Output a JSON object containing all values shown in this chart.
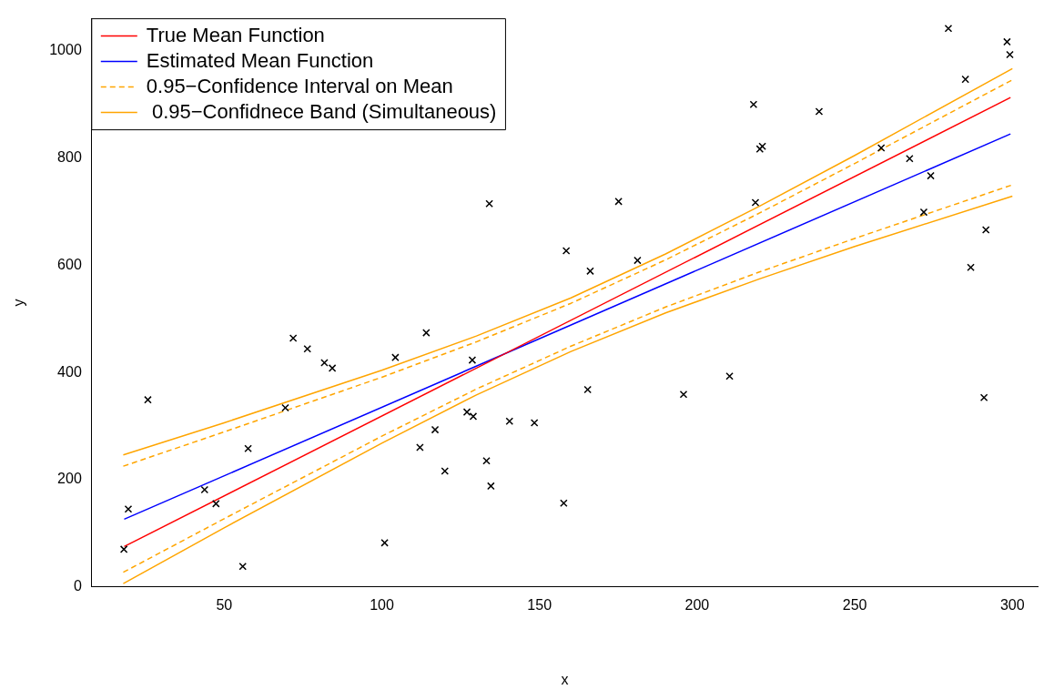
{
  "chart_data": {
    "type": "scatter",
    "xlabel": "x",
    "ylabel": "y",
    "xlim": [
      8,
      308
    ],
    "ylim": [
      0,
      1060
    ],
    "xticks": [
      50,
      100,
      150,
      200,
      250,
      300
    ],
    "yticks": [
      0,
      200,
      400,
      600,
      800,
      1000
    ],
    "grid": false,
    "legend": "top left",
    "x": [
      18.2,
      19.6,
      25.8,
      43.8,
      47.4,
      55.9,
      57.6,
      69.4,
      71.9,
      76.4,
      81.8,
      84.3,
      100.9,
      104.3,
      112.1,
      114.1,
      116.9,
      120.0,
      127.0,
      128.7,
      129.0,
      133.2,
      134.1,
      134.6,
      140.5,
      148.4,
      157.7,
      158.5,
      165.3,
      166.1,
      175.1,
      181.1,
      195.7,
      210.3,
      217.9,
      218.5,
      219.9,
      220.7,
      238.7,
      258.4,
      267.4,
      271.9,
      274.1,
      279.7,
      285.1,
      286.8,
      291.0,
      291.6,
      298.3,
      299.2
    ],
    "series": [
      {
        "marker": "cross",
        "color": "#000000",
        "values": [
          70,
          145,
          349,
          181,
          155,
          38,
          258,
          334,
          464,
          444,
          418,
          408,
          82,
          428,
          260,
          474,
          293,
          216,
          326,
          423,
          318,
          235,
          715,
          188,
          309,
          306,
          156,
          627,
          368,
          589,
          719,
          609,
          359,
          393,
          900,
          717,
          817,
          822,
          887,
          819,
          799,
          699,
          767,
          1042,
          947,
          596,
          353,
          666,
          1017,
          993
        ]
      },
      {
        "type": "line",
        "name": "True Mean Function",
        "color": "#ff0000",
        "line_style": "solid",
        "x": [
          18.3,
          299.4
        ],
        "values": [
          75,
          913
        ]
      },
      {
        "type": "line",
        "name": "Estimated Mean Function",
        "color": "#0000ff",
        "line_style": "solid",
        "x": [
          18.3,
          299.4
        ],
        "values": [
          126,
          845
        ]
      },
      {
        "type": "line",
        "name": "0.95−Confidence Interval on Mean",
        "color": "#ffa500",
        "line_style": "dashed",
        "x": [
          18,
          50,
          100,
          130,
          160,
          190,
          220,
          250,
          300
        ],
        "values": [
          225,
          289,
          391,
          457,
          529,
          610,
          698,
          790,
          946
        ]
      },
      {
        "type": "line",
        "color": "#ffa500",
        "line_style": "dashed",
        "x": [
          18,
          50,
          100,
          130,
          160,
          190,
          220,
          250,
          300
        ],
        "values": [
          27,
          127,
          281,
          369,
          449,
          522,
          588,
          650,
          750
        ]
      },
      {
        "type": "line",
        "name": " 0.95−Confidnece Band (Simultaneous)",
        "color": "#ffa500",
        "line_style": "solid",
        "x": [
          18,
          50,
          100,
          130,
          160,
          190,
          220,
          250,
          300
        ],
        "values": [
          246,
          306,
          404,
          468,
          539,
          621,
          711,
          805,
          967
        ]
      },
      {
        "type": "line",
        "color": "#ffa500",
        "line_style": "solid",
        "x": [
          18,
          50,
          100,
          130,
          160,
          190,
          220,
          250,
          300
        ],
        "values": [
          6,
          110,
          268,
          358,
          439,
          511,
          575,
          635,
          729
        ]
      }
    ]
  }
}
